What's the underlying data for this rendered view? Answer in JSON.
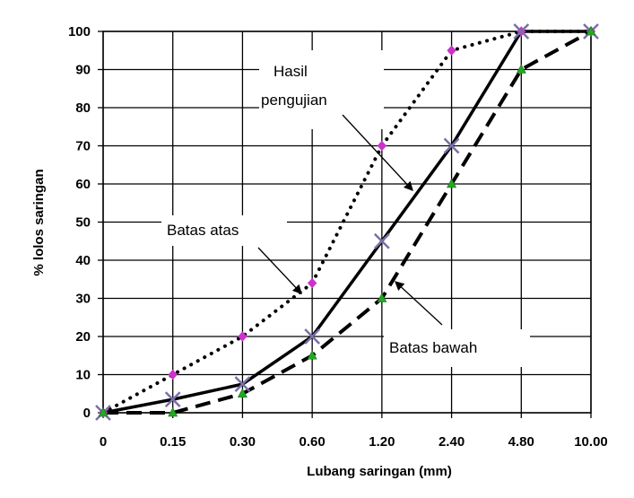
{
  "chart_data": {
    "type": "line",
    "xlabel": "Lubang saringan (mm)",
    "ylabel": "% lolos saringan",
    "categories": [
      "0",
      "0.15",
      "0.30",
      "0.60",
      "1.20",
      "2.40",
      "4.80",
      "10.00"
    ],
    "ylim": [
      0,
      100
    ],
    "yticks": [
      "0",
      "10",
      "20",
      "30",
      "40",
      "50",
      "60",
      "70",
      "80",
      "90",
      "100"
    ],
    "grid": true,
    "series": [
      {
        "name": "Batas atas",
        "style": "dotted",
        "marker": "diamond",
        "marker_color": "#cc33cc",
        "values": [
          0,
          10,
          20,
          34,
          70,
          95,
          100,
          100
        ]
      },
      {
        "name": "Hasil pengujian",
        "style": "solid",
        "marker": "x",
        "marker_color": "#7a6fa8",
        "values": [
          0,
          3.5,
          7.5,
          20,
          45,
          70,
          100,
          100
        ]
      },
      {
        "name": "Batas bawah",
        "style": "dashed",
        "marker": "triangle",
        "marker_color": "#22aa22",
        "values": [
          0,
          0,
          5,
          15,
          30,
          60,
          90,
          100
        ]
      }
    ],
    "annotations": [
      {
        "lines": [
          "Hasil",
          "pengujian"
        ],
        "series": "Hasil pengujian"
      },
      {
        "lines": [
          "Batas atas"
        ],
        "series": "Batas atas"
      },
      {
        "lines": [
          "Batas bawah"
        ],
        "series": "Batas bawah"
      }
    ]
  }
}
